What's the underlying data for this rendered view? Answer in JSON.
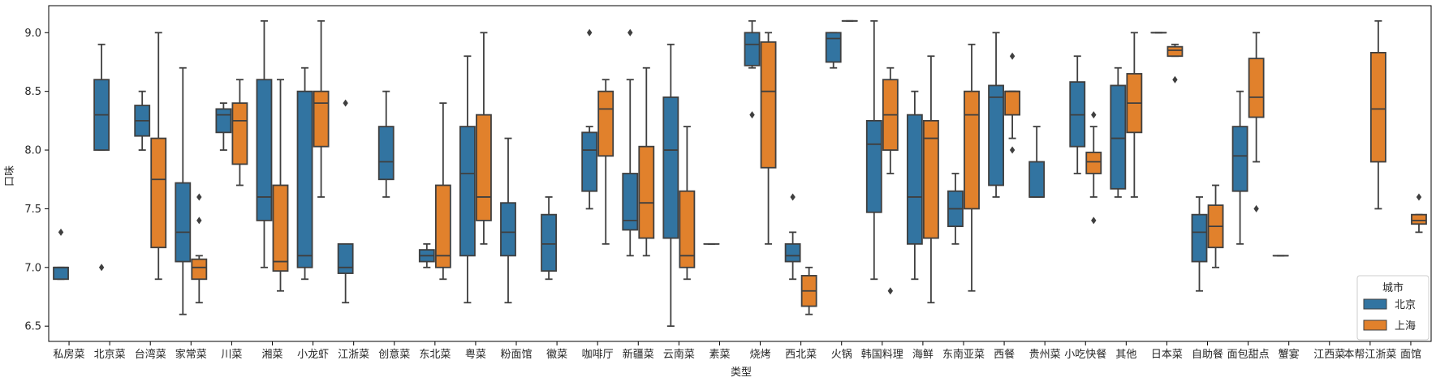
{
  "chart_data": {
    "type": "boxplot",
    "xlabel": "类型",
    "ylabel": "口味",
    "ylim": [
      6.37,
      9.23
    ],
    "yticks": [
      6.5,
      7.0,
      7.5,
      8.0,
      8.5,
      9.0
    ],
    "ytick_labels": [
      "6.5",
      "7.0",
      "7.5",
      "8.0",
      "8.5",
      "9.0"
    ],
    "legend": {
      "title": "城市",
      "position": "lower-right",
      "entries": [
        {
          "name": "北京",
          "color": "#3274a1"
        },
        {
          "name": "上海",
          "color": "#e1812c"
        }
      ]
    },
    "series_colors": {
      "北京": "#3274a1",
      "上海": "#e1812c"
    },
    "edge_color": "#3f3f3f",
    "categories": [
      "私房菜",
      "北京菜",
      "台湾菜",
      "家常菜",
      "川菜",
      "湘菜",
      "小龙虾",
      "江浙菜",
      "创意菜",
      "东北菜",
      "粤菜",
      "粉面馆",
      "徽菜",
      "咖啡厅",
      "新疆菜",
      "云南菜",
      "素菜",
      "烧烤",
      "西北菜",
      "火锅",
      "韩国料理",
      "海鲜",
      "东南亚菜",
      "西餐",
      "贵州菜",
      "小吃快餐",
      "其他",
      "日本菜",
      "自助餐",
      "面包甜点",
      "蟹宴",
      "江西菜",
      "本帮江浙菜",
      "面馆"
    ],
    "boxes": [
      {
        "cat": 0,
        "series": "北京",
        "min": 6.9,
        "q1": 6.9,
        "med": 7.0,
        "q3": 7.0,
        "max": 7.0,
        "outliers": [
          7.3
        ]
      },
      {
        "cat": 1,
        "series": "北京",
        "min": 8.0,
        "q1": 8.0,
        "med": 8.3,
        "q3": 8.6,
        "max": 8.9,
        "outliers": [
          7.0
        ]
      },
      {
        "cat": 2,
        "series": "北京",
        "min": 8.0,
        "q1": 8.12,
        "med": 8.25,
        "q3": 8.38,
        "max": 8.5,
        "outliers": []
      },
      {
        "cat": 2,
        "series": "上海",
        "min": 6.9,
        "q1": 7.17,
        "med": 7.75,
        "q3": 8.1,
        "max": 9.0,
        "outliers": []
      },
      {
        "cat": 3,
        "series": "北京",
        "min": 6.6,
        "q1": 7.05,
        "med": 7.3,
        "q3": 7.72,
        "max": 8.7,
        "outliers": []
      },
      {
        "cat": 3,
        "series": "上海",
        "min": 6.7,
        "q1": 6.9,
        "med": 7.0,
        "q3": 7.07,
        "max": 7.1,
        "outliers": [
          7.4,
          7.6
        ]
      },
      {
        "cat": 4,
        "series": "北京",
        "min": 8.0,
        "q1": 8.15,
        "med": 8.3,
        "q3": 8.35,
        "max": 8.4,
        "outliers": []
      },
      {
        "cat": 4,
        "series": "上海",
        "min": 7.7,
        "q1": 7.88,
        "med": 8.25,
        "q3": 8.4,
        "max": 8.6,
        "outliers": []
      },
      {
        "cat": 5,
        "series": "北京",
        "min": 7.0,
        "q1": 7.4,
        "med": 7.6,
        "q3": 8.6,
        "max": 9.1,
        "outliers": []
      },
      {
        "cat": 5,
        "series": "上海",
        "min": 6.8,
        "q1": 6.97,
        "med": 7.05,
        "q3": 7.7,
        "max": 8.6,
        "outliers": []
      },
      {
        "cat": 6,
        "series": "北京",
        "min": 6.9,
        "q1": 7.0,
        "med": 7.1,
        "q3": 8.5,
        "max": 8.7,
        "outliers": []
      },
      {
        "cat": 6,
        "series": "上海",
        "min": 7.6,
        "q1": 8.03,
        "med": 8.4,
        "q3": 8.5,
        "max": 9.1,
        "outliers": []
      },
      {
        "cat": 7,
        "series": "北京",
        "min": 6.7,
        "q1": 6.95,
        "med": 7.0,
        "q3": 7.2,
        "max": 7.2,
        "outliers": [
          8.4
        ]
      },
      {
        "cat": 8,
        "series": "北京",
        "min": 7.6,
        "q1": 7.75,
        "med": 7.9,
        "q3": 8.2,
        "max": 8.5,
        "outliers": []
      },
      {
        "cat": 9,
        "series": "北京",
        "min": 7.0,
        "q1": 7.05,
        "med": 7.1,
        "q3": 7.15,
        "max": 7.2,
        "outliers": []
      },
      {
        "cat": 9,
        "series": "上海",
        "min": 6.9,
        "q1": 7.0,
        "med": 7.1,
        "q3": 7.7,
        "max": 8.4,
        "outliers": []
      },
      {
        "cat": 10,
        "series": "北京",
        "min": 6.7,
        "q1": 7.1,
        "med": 7.8,
        "q3": 8.2,
        "max": 8.8,
        "outliers": []
      },
      {
        "cat": 10,
        "series": "上海",
        "min": 7.2,
        "q1": 7.4,
        "med": 7.6,
        "q3": 8.3,
        "max": 9.0,
        "outliers": []
      },
      {
        "cat": 11,
        "series": "北京",
        "min": 6.7,
        "q1": 7.1,
        "med": 7.3,
        "q3": 7.55,
        "max": 8.1,
        "outliers": []
      },
      {
        "cat": 12,
        "series": "北京",
        "min": 6.9,
        "q1": 6.97,
        "med": 7.2,
        "q3": 7.45,
        "max": 7.6,
        "outliers": []
      },
      {
        "cat": 13,
        "series": "北京",
        "min": 7.5,
        "q1": 7.65,
        "med": 8.0,
        "q3": 8.15,
        "max": 8.2,
        "outliers": [
          9.0
        ]
      },
      {
        "cat": 13,
        "series": "上海",
        "min": 7.2,
        "q1": 7.95,
        "med": 8.35,
        "q3": 8.5,
        "max": 8.6,
        "outliers": []
      },
      {
        "cat": 14,
        "series": "北京",
        "min": 7.1,
        "q1": 7.32,
        "med": 7.4,
        "q3": 7.8,
        "max": 8.6,
        "outliers": [
          9.0
        ]
      },
      {
        "cat": 14,
        "series": "上海",
        "min": 7.1,
        "q1": 7.25,
        "med": 7.55,
        "q3": 8.03,
        "max": 8.7,
        "outliers": []
      },
      {
        "cat": 15,
        "series": "北京",
        "min": 6.5,
        "q1": 7.25,
        "med": 8.0,
        "q3": 8.45,
        "max": 8.9,
        "outliers": []
      },
      {
        "cat": 15,
        "series": "上海",
        "min": 6.9,
        "q1": 7.0,
        "med": 7.1,
        "q3": 7.65,
        "max": 8.2,
        "outliers": []
      },
      {
        "cat": 16,
        "series": "北京",
        "min": 7.2,
        "q1": 7.2,
        "med": 7.2,
        "q3": 7.2,
        "max": 7.2,
        "outliers": []
      },
      {
        "cat": 17,
        "series": "北京",
        "min": 8.7,
        "q1": 8.72,
        "med": 8.9,
        "q3": 9.0,
        "max": 9.1,
        "outliers": [
          8.3
        ]
      },
      {
        "cat": 17,
        "series": "上海",
        "min": 7.2,
        "q1": 7.85,
        "med": 8.5,
        "q3": 8.92,
        "max": 9.0,
        "outliers": []
      },
      {
        "cat": 18,
        "series": "北京",
        "min": 6.9,
        "q1": 7.05,
        "med": 7.1,
        "q3": 7.2,
        "max": 7.3,
        "outliers": [
          7.6
        ]
      },
      {
        "cat": 18,
        "series": "上海",
        "min": 6.6,
        "q1": 6.67,
        "med": 6.8,
        "q3": 6.93,
        "max": 7.0,
        "outliers": []
      },
      {
        "cat": 19,
        "series": "北京",
        "min": 8.7,
        "q1": 8.75,
        "med": 8.95,
        "q3": 9.0,
        "max": 9.0,
        "outliers": []
      },
      {
        "cat": 19,
        "series": "上海",
        "min": 9.1,
        "q1": 9.1,
        "med": 9.1,
        "q3": 9.1,
        "max": 9.1,
        "outliers": []
      },
      {
        "cat": 20,
        "series": "北京",
        "min": 6.9,
        "q1": 7.47,
        "med": 8.05,
        "q3": 8.25,
        "max": 9.1,
        "outliers": []
      },
      {
        "cat": 20,
        "series": "上海",
        "min": 7.8,
        "q1": 8.0,
        "med": 8.3,
        "q3": 8.6,
        "max": 8.7,
        "outliers": [
          6.8
        ]
      },
      {
        "cat": 21,
        "series": "北京",
        "min": 6.9,
        "q1": 7.2,
        "med": 7.6,
        "q3": 8.3,
        "max": 8.5,
        "outliers": []
      },
      {
        "cat": 21,
        "series": "上海",
        "min": 6.7,
        "q1": 7.25,
        "med": 8.1,
        "q3": 8.25,
        "max": 8.8,
        "outliers": []
      },
      {
        "cat": 22,
        "series": "北京",
        "min": 7.2,
        "q1": 7.35,
        "med": 7.5,
        "q3": 7.65,
        "max": 7.8,
        "outliers": []
      },
      {
        "cat": 22,
        "series": "上海",
        "min": 6.8,
        "q1": 7.5,
        "med": 8.3,
        "q3": 8.5,
        "max": 8.9,
        "outliers": []
      },
      {
        "cat": 23,
        "series": "北京",
        "min": 7.6,
        "q1": 7.7,
        "med": 8.45,
        "q3": 8.55,
        "max": 9.0,
        "outliers": []
      },
      {
        "cat": 23,
        "series": "上海",
        "min": 8.1,
        "q1": 8.3,
        "med": 8.5,
        "q3": 8.5,
        "max": 8.5,
        "outliers": [
          8.8,
          8.0
        ]
      },
      {
        "cat": 24,
        "series": "北京",
        "min": 7.6,
        "q1": 7.6,
        "med": 7.6,
        "q3": 7.9,
        "max": 8.2,
        "outliers": []
      },
      {
        "cat": 25,
        "series": "北京",
        "min": 7.8,
        "q1": 8.03,
        "med": 8.3,
        "q3": 8.58,
        "max": 8.8,
        "outliers": []
      },
      {
        "cat": 25,
        "series": "上海",
        "min": 7.6,
        "q1": 7.8,
        "med": 7.9,
        "q3": 7.98,
        "max": 8.2,
        "outliers": [
          8.3,
          7.4
        ]
      },
      {
        "cat": 26,
        "series": "北京",
        "min": 7.6,
        "q1": 7.67,
        "med": 8.1,
        "q3": 8.55,
        "max": 8.7,
        "outliers": []
      },
      {
        "cat": 26,
        "series": "上海",
        "min": 7.6,
        "q1": 8.15,
        "med": 8.4,
        "q3": 8.65,
        "max": 9.0,
        "outliers": []
      },
      {
        "cat": 27,
        "series": "北京",
        "min": 9.0,
        "q1": 9.0,
        "med": 9.0,
        "q3": 9.0,
        "max": 9.0,
        "outliers": []
      },
      {
        "cat": 27,
        "series": "上海",
        "min": 8.8,
        "q1": 8.8,
        "med": 8.85,
        "q3": 8.88,
        "max": 8.9,
        "outliers": [
          8.6
        ]
      },
      {
        "cat": 28,
        "series": "北京",
        "min": 6.8,
        "q1": 7.05,
        "med": 7.3,
        "q3": 7.45,
        "max": 7.6,
        "outliers": []
      },
      {
        "cat": 28,
        "series": "上海",
        "min": 7.0,
        "q1": 7.17,
        "med": 7.35,
        "q3": 7.53,
        "max": 7.7,
        "outliers": []
      },
      {
        "cat": 29,
        "series": "北京",
        "min": 7.2,
        "q1": 7.65,
        "med": 7.95,
        "q3": 8.2,
        "max": 8.5,
        "outliers": []
      },
      {
        "cat": 29,
        "series": "上海",
        "min": 7.9,
        "q1": 8.28,
        "med": 8.45,
        "q3": 8.78,
        "max": 9.0,
        "outliers": [
          7.5
        ]
      },
      {
        "cat": 30,
        "series": "北京",
        "min": 7.1,
        "q1": 7.1,
        "med": 7.1,
        "q3": 7.1,
        "max": 7.1,
        "outliers": []
      },
      {
        "cat": 32,
        "series": "上海",
        "min": 7.5,
        "q1": 7.9,
        "med": 8.35,
        "q3": 8.83,
        "max": 9.1,
        "outliers": []
      },
      {
        "cat": 33,
        "series": "上海",
        "min": 7.3,
        "q1": 7.37,
        "med": 7.4,
        "q3": 7.45,
        "max": 7.45,
        "outliers": [
          7.6
        ]
      }
    ]
  }
}
